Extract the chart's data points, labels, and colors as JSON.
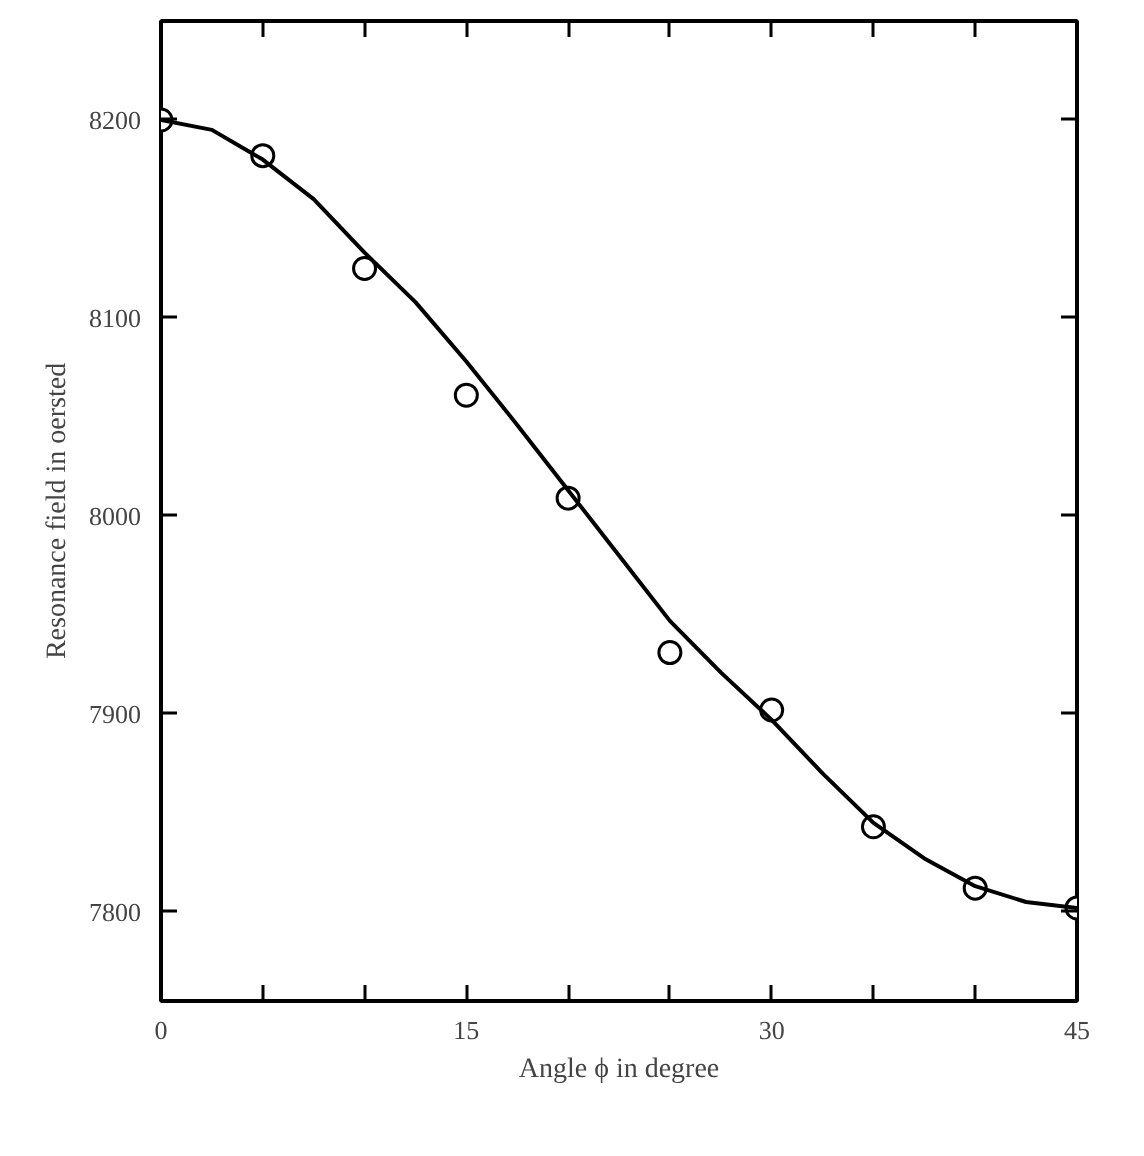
{
  "chart_data": {
    "type": "scatter",
    "xlabel": "Angle ϕ in degree",
    "ylabel": "Resonance field in oersted",
    "x": [
      0,
      5,
      10,
      15,
      20,
      25,
      30,
      35,
      40,
      45
    ],
    "series": [
      {
        "color": "#000000",
        "marker": "circle",
        "values": [
          8200,
          8182,
          8125,
          8061,
          8009,
          7931,
          7902,
          7843,
          7812,
          7802
        ]
      },
      {
        "type": "line",
        "color": "#000000",
        "line_style": "solid",
        "x": [
          0,
          2.5,
          5,
          7.5,
          10,
          12.5,
          15,
          17.5,
          20,
          22.5,
          25,
          27.5,
          30,
          32.5,
          35,
          37.5,
          40,
          42.5,
          45
        ],
        "values": [
          8200,
          8195,
          8180,
          8160,
          8133,
          8108,
          8078,
          8046,
          8013,
          7980,
          7947,
          7921,
          7897,
          7870,
          7845,
          7827,
          7813,
          7805,
          7802
        ]
      }
    ],
    "xlim": [
      0,
      45
    ],
    "ylim": [
      7755,
      8250
    ],
    "xticks": [
      0,
      {
        "value": 5,
        "label": null
      },
      {
        "value": 10,
        "label": null
      },
      15,
      {
        "value": 20,
        "label": null
      },
      {
        "value": 25,
        "label": null
      },
      30,
      {
        "value": 35,
        "label": null
      },
      {
        "value": 40,
        "label": null
      },
      45
    ],
    "yticks": [
      7800,
      7900,
      8000,
      8100,
      8200
    ],
    "grid": false
  }
}
